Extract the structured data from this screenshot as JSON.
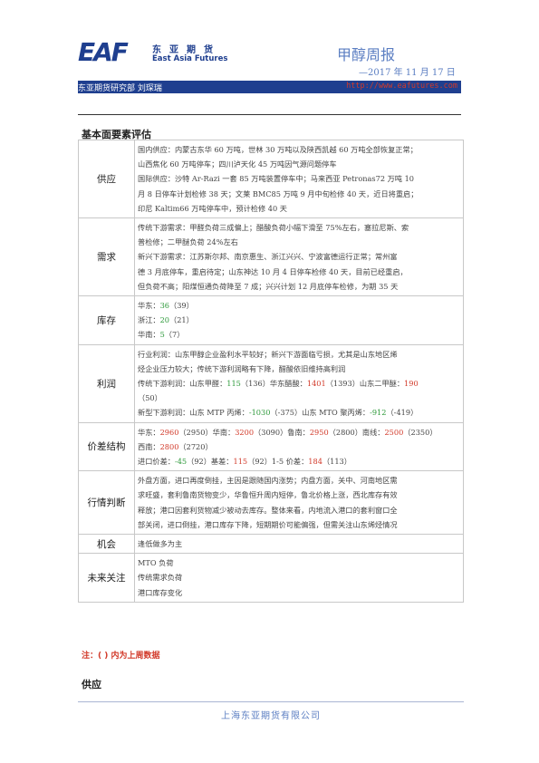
{
  "header": {
    "logo_mark": "EAF",
    "logo_cn": "东亚期货",
    "logo_en": "East Asia Futures",
    "report_title": "甲醇周报",
    "report_date": "—2017 年 11 月 17 日",
    "dept": "东亚期货研究部 刘琛瑞",
    "website": "http://www.eafutures.com"
  },
  "section_title": "基本面要素评估",
  "rows": [
    {
      "label": "供应",
      "lines": [
        [
          {
            "t": "国内供应：内蒙古东华 60 万吨，世林 30 万吨以及陕西凯越 60 万吨全部恢复正常；"
          }
        ],
        [
          {
            "t": "山西焦化 60 万吨停车；四川泸天化 45 万吨因气源问题停车"
          }
        ],
        [
          {
            "t": "国际供应：沙特 Ar-Razi 一套 85 万吨装置停车中；马来西亚 Petronas72 万吨 10"
          }
        ],
        [
          {
            "t": "月 8 日停车计划检修 38 天；文莱 BMC85 万吨 9 月中旬检修 40 天，近日将重启；"
          }
        ],
        [
          {
            "t": "印尼 Kaltim66 万吨停车中，预计检修 40 天"
          }
        ]
      ]
    },
    {
      "label": "需求",
      "lines": [
        [
          {
            "t": "传统下游需求：甲醛负荷三成偏上；醋酸负荷小幅下滑至 75%左右，塞拉尼斯、索"
          }
        ],
        [
          {
            "t": "普检修；二甲醚负荷 24%左右"
          }
        ],
        [
          {
            "t": "新兴下游需求：江苏斯尔邦、南京惠生、浙江兴兴、宁波富德运行正常；常州富"
          }
        ],
        [
          {
            "t": "德 3 月底停车，重启待定；山东神达 10 月 4 日停车检修 40 天，目前已经重启，"
          }
        ],
        [
          {
            "t": "但负荷不高；阳煤恒通负荷降至 7 成；兴兴计划 12 月底停车检修，为期 35 天"
          }
        ]
      ]
    },
    {
      "label": "库存",
      "lines": [
        [
          {
            "t": "华东："
          },
          {
            "t": "36",
            "c": "g"
          },
          {
            "t": "（39）"
          }
        ],
        [
          {
            "t": "浙江："
          },
          {
            "t": "20",
            "c": "g"
          },
          {
            "t": "（21）"
          }
        ],
        [
          {
            "t": "华南："
          },
          {
            "t": "5",
            "c": "g"
          },
          {
            "t": "（7）"
          }
        ]
      ]
    },
    {
      "label": "利润",
      "lines": [
        [
          {
            "t": "行业利润：山东甲醇企业盈利水平较好；新兴下游面临亏损，尤其是山东地区烯"
          }
        ],
        [
          {
            "t": "烃企业压力较大；传统下游利润略有下降，醋酸依旧维持高利润"
          }
        ],
        [
          {
            "t": "传统下游利润：山东甲醛："
          },
          {
            "t": "115",
            "c": "g"
          },
          {
            "t": "（136）华东醋酸："
          },
          {
            "t": "1401",
            "c": "r"
          },
          {
            "t": "（1393）山东二甲醚："
          },
          {
            "t": "190",
            "c": "r"
          }
        ],
        [
          {
            "t": "（50）"
          }
        ],
        [
          {
            "t": "新型下游利润：山东 MTP 丙烯："
          },
          {
            "t": "-1030",
            "c": "g"
          },
          {
            "t": "（-375）山东 MTO 聚丙烯："
          },
          {
            "t": "-912",
            "c": "g"
          },
          {
            "t": "（-419）"
          }
        ]
      ]
    },
    {
      "label": "价差结构",
      "lines": [
        [
          {
            "t": "华东："
          },
          {
            "t": "2960",
            "c": "r"
          },
          {
            "t": "（2950）华南："
          },
          {
            "t": "3200",
            "c": "r"
          },
          {
            "t": "（3090）鲁南："
          },
          {
            "t": "2950",
            "c": "r"
          },
          {
            "t": "（2800）南线："
          },
          {
            "t": "2500",
            "c": "r"
          },
          {
            "t": "（2350）"
          }
        ],
        [
          {
            "t": "西南："
          },
          {
            "t": "2800",
            "c": "r"
          },
          {
            "t": "（2720）"
          }
        ],
        [
          {
            "t": "进口价差："
          },
          {
            "t": "-45",
            "c": "g"
          },
          {
            "t": "（92）基差："
          },
          {
            "t": "115",
            "c": "r"
          },
          {
            "t": "（92）1-5 价差："
          },
          {
            "t": "184",
            "c": "r"
          },
          {
            "t": "（113）"
          }
        ]
      ]
    },
    {
      "label": "行情判断",
      "lines": [
        [
          {
            "t": "外盘方面，进口再度倒挂，主因是跟随国内涨势；内盘方面，关中、河南地区需"
          }
        ],
        [
          {
            "t": "求旺盛，套利鲁南货物变少，华鲁恒升周内短停，鲁北价格上涨，西北库存有效"
          }
        ],
        [
          {
            "t": "释放；港口因套利货物减少被动去库存。整体来看，内地流入港口的套利窗口全"
          }
        ],
        [
          {
            "t": "部关闭，进口倒挂，港口库存下降，短期期价可能偏强，但需关注山东烯烃情况"
          }
        ]
      ]
    },
    {
      "label": "机会",
      "lines": [
        [
          {
            "t": "逢低做多为主"
          }
        ]
      ]
    },
    {
      "label": "未来关注",
      "lines": [
        [
          {
            "t": "MTO 负荷"
          }
        ],
        [
          {
            "t": "传统需求负荷"
          }
        ],
        [
          {
            "t": "港口库存变化"
          }
        ]
      ]
    }
  ],
  "note": "注：( ) 内为上周数据",
  "next_section": "供应",
  "footer": "上海东亚期货有限公司"
}
